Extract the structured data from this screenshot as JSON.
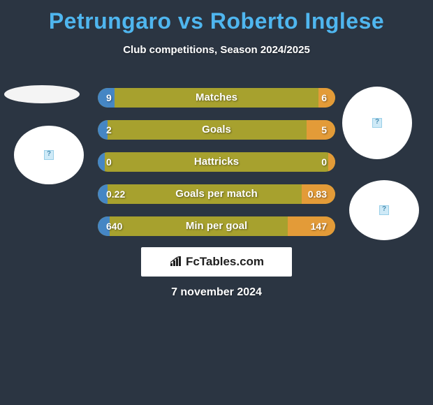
{
  "header": {
    "title": "Petrungaro vs Roberto Inglese",
    "subtitle": "Club competitions, Season 2024/2025",
    "title_color": "#4fb6ef"
  },
  "bars": {
    "track_color": "#a7a12e",
    "left_color": "#4586c4",
    "right_color": "#e39b38",
    "items": [
      {
        "name": "Matches",
        "left": "9",
        "right": "6",
        "left_pct": 7,
        "right_pct": 7
      },
      {
        "name": "Goals",
        "left": "2",
        "right": "5",
        "left_pct": 4,
        "right_pct": 12
      },
      {
        "name": "Hattricks",
        "left": "0",
        "right": "0",
        "left_pct": 3,
        "right_pct": 3
      },
      {
        "name": "Goals per match",
        "left": "0.22",
        "right": "0.83",
        "left_pct": 4,
        "right_pct": 14
      },
      {
        "name": "Min per goal",
        "left": "640",
        "right": "147",
        "left_pct": 5,
        "right_pct": 20
      }
    ]
  },
  "brand": {
    "text": "FcTables.com"
  },
  "footer": {
    "date": "7 november 2024"
  }
}
